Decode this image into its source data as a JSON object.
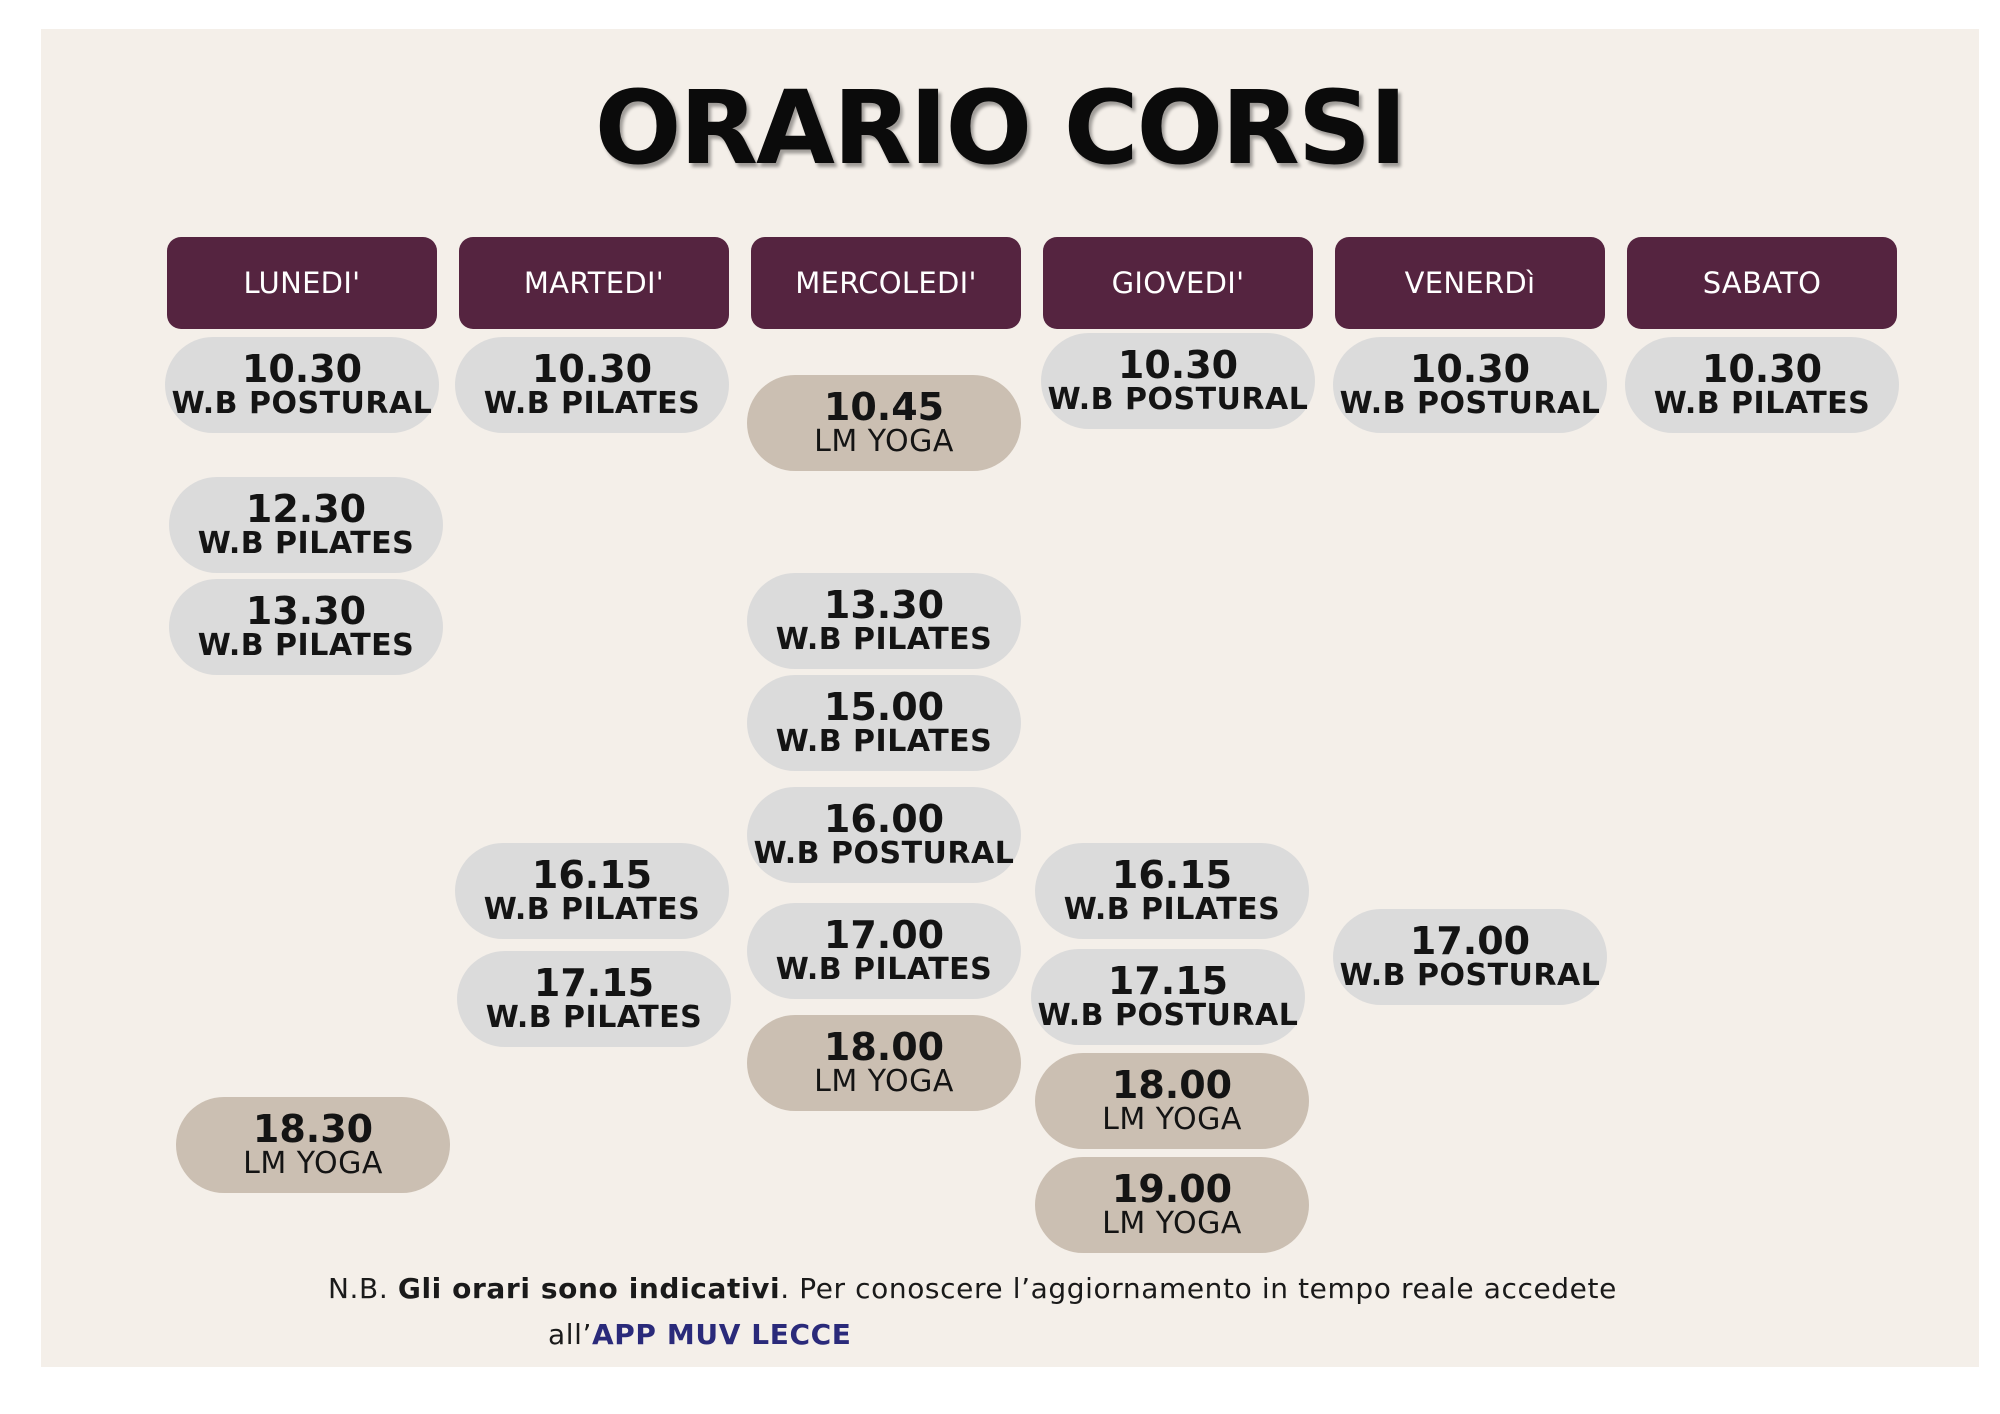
{
  "title": "ORARIO CORSI",
  "days": [
    {
      "label": "LUNEDI'"
    },
    {
      "label": "MARTEDI'"
    },
    {
      "label": "MERCOLEDI'"
    },
    {
      "label": "GIOVEDI'"
    },
    {
      "label": "VENERDì"
    },
    {
      "label": "SABATO"
    }
  ],
  "slots": {
    "lunedi": [
      {
        "time": "10.30",
        "course": "W.B POSTURAL"
      },
      {
        "time": "12.30",
        "course": "W.B PILATES"
      },
      {
        "time": "13.30",
        "course": "W.B PILATES"
      },
      {
        "time": "18.30",
        "course": "LM YOGA"
      }
    ],
    "martedi": [
      {
        "time": "10.30",
        "course": "W.B PILATES"
      },
      {
        "time": "16.15",
        "course": "W.B PILATES"
      },
      {
        "time": "17.15",
        "course": "W.B PILATES"
      }
    ],
    "mercoledi": [
      {
        "time": "10.45",
        "course": "LM YOGA"
      },
      {
        "time": "13.30",
        "course": "W.B PILATES"
      },
      {
        "time": "15.00",
        "course": "W.B PILATES"
      },
      {
        "time": "16.00",
        "course": "W.B POSTURAL"
      },
      {
        "time": "17.00",
        "course": "W.B PILATES"
      },
      {
        "time": "18.00",
        "course": "LM YOGA"
      }
    ],
    "giovedi": [
      {
        "time": "10.30",
        "course": "W.B POSTURAL"
      },
      {
        "time": "16.15",
        "course": "W.B PILATES"
      },
      {
        "time": "17.15",
        "course": "W.B POSTURAL"
      },
      {
        "time": "18.00",
        "course": "LM YOGA"
      },
      {
        "time": "19.00",
        "course": "LM YOGA"
      }
    ],
    "venerdi": [
      {
        "time": "10.30",
        "course": "W.B POSTURAL"
      },
      {
        "time": "17.00",
        "course": "W.B POSTURAL"
      }
    ],
    "sabato": [
      {
        "time": "10.30",
        "course": "W.B PILATES"
      }
    ]
  },
  "note": {
    "prefix": "N.B. ",
    "bold": "Gli orari sono indicativi",
    "rest": ". Per conoscere l’aggiornamento in tempo reale accedete",
    "line2_prefix": "all’",
    "app": "APP MUV LECCE"
  },
  "colors": {
    "background": "#f4efe9",
    "header": "#552440",
    "wb_slot": "#dbdbdb",
    "yoga_slot": "#cbbfb2",
    "app_link": "#2a2a7a"
  }
}
